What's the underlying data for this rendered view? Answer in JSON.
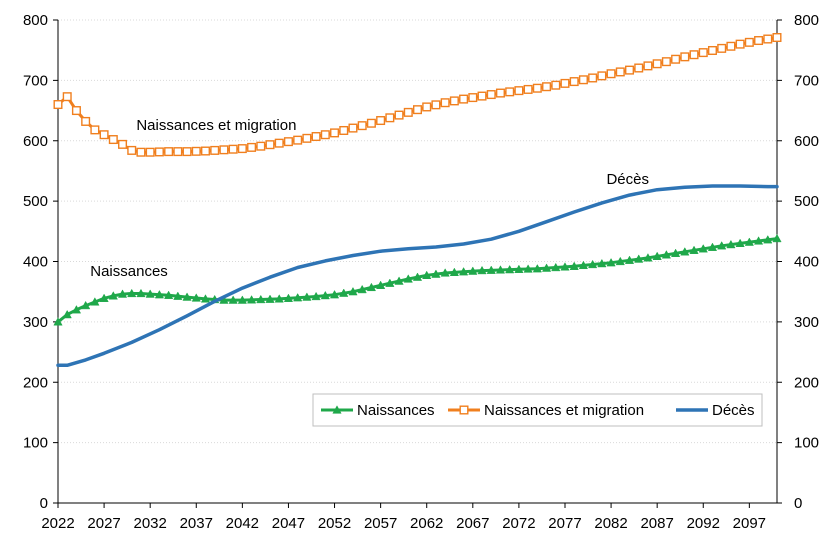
{
  "chart_data": {
    "type": "line",
    "x": [
      2022,
      2027,
      2032,
      2037,
      2042,
      2047,
      2052,
      2057,
      2062,
      2067,
      2072,
      2077,
      2082,
      2087,
      2092,
      2097,
      2099
    ],
    "xticks": [
      "2022",
      "2027",
      "2032",
      "2037",
      "2042",
      "2047",
      "2052",
      "2057",
      "2062",
      "2067",
      "2072",
      "2077",
      "2082",
      "2087",
      "2092",
      "2097"
    ],
    "yticks": [
      "0",
      "100",
      "200",
      "300",
      "400",
      "500",
      "600",
      "700",
      "800"
    ],
    "ylim": [
      0,
      800
    ],
    "xlim": [
      2022,
      2100
    ],
    "grid": true,
    "legend_position": "lower-right",
    "series": [
      {
        "name": "Naissances",
        "color": "#1fa84a",
        "marker": "triangle",
        "x": [
          2022,
          2023,
          2024,
          2025,
          2026,
          2027,
          2028,
          2029,
          2030,
          2031,
          2032,
          2034,
          2036,
          2038,
          2040,
          2042,
          2044,
          2046,
          2048,
          2050,
          2052,
          2054,
          2056,
          2058,
          2060,
          2062,
          2064,
          2066,
          2068,
          2070,
          2072,
          2074,
          2076,
          2078,
          2080,
          2082,
          2084,
          2086,
          2088,
          2090,
          2092,
          2094,
          2096,
          2098,
          2100
        ],
        "values": [
          300,
          312,
          320,
          327,
          333,
          339,
          343,
          346,
          347,
          347,
          346,
          344,
          341,
          338,
          336,
          336,
          337,
          338,
          340,
          342,
          345,
          350,
          357,
          364,
          371,
          377,
          381,
          383,
          385,
          386,
          387,
          388,
          390,
          392,
          395,
          398,
          402,
          406,
          411,
          416,
          421,
          426,
          430,
          434,
          438
        ]
      },
      {
        "name": "Naissances et migration",
        "color": "#f07f1e",
        "marker": "square",
        "x": [
          2022,
          2023,
          2024,
          2025,
          2026,
          2027,
          2028,
          2029,
          2030,
          2031,
          2032,
          2034,
          2036,
          2038,
          2040,
          2042,
          2044,
          2046,
          2048,
          2050,
          2052,
          2054,
          2056,
          2058,
          2060,
          2062,
          2064,
          2066,
          2068,
          2070,
          2072,
          2074,
          2076,
          2078,
          2080,
          2082,
          2084,
          2086,
          2088,
          2090,
          2092,
          2094,
          2096,
          2098,
          2100
        ],
        "values": [
          660,
          673,
          650,
          632,
          618,
          610,
          602,
          594,
          584,
          581,
          581,
          582,
          582,
          583,
          585,
          587,
          591,
          596,
          601,
          607,
          613,
          621,
          629,
          638,
          647,
          656,
          663,
          669,
          674,
          679,
          683,
          687,
          692,
          698,
          704,
          711,
          717,
          724,
          731,
          739,
          746,
          753,
          760,
          766,
          771
        ]
      },
      {
        "name": "Décès",
        "color": "#2e74b5",
        "marker": "none",
        "x": [
          2022,
          2023,
          2025,
          2027,
          2030,
          2033,
          2036,
          2039,
          2042,
          2045,
          2048,
          2051,
          2054,
          2057,
          2060,
          2063,
          2066,
          2069,
          2072,
          2075,
          2078,
          2081,
          2084,
          2087,
          2090,
          2093,
          2096,
          2099,
          2100
        ],
        "values": [
          228,
          228,
          237,
          248,
          266,
          287,
          310,
          334,
          356,
          374,
          390,
          401,
          410,
          417,
          421,
          424,
          429,
          437,
          450,
          466,
          482,
          497,
          510,
          519,
          523,
          525,
          525,
          524,
          524
        ]
      }
    ],
    "annotations": [
      {
        "text": "Naissances et migration",
        "x": 2030.5,
        "y": 618
      },
      {
        "text": "Naissances",
        "x": 2025.5,
        "y": 376
      },
      {
        "text": "Décès",
        "x": 2081.5,
        "y": 528
      }
    ],
    "legend": [
      "Naissances",
      "Naissances et migration",
      "Décès"
    ]
  }
}
